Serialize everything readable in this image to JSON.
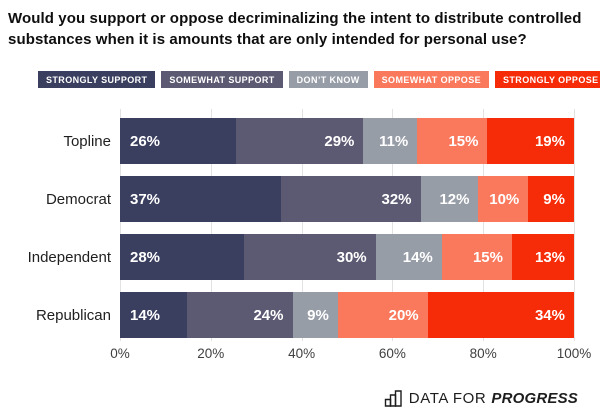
{
  "title": "Would you support or oppose decriminalizing the intent to distribute controlled substances when it is amounts that are only intended for personal use?",
  "legend": [
    {
      "label": "STRONGLY SUPPORT",
      "color": "#3a3f5f"
    },
    {
      "label": "SOMEWHAT SUPPORT",
      "color": "#5c5a73"
    },
    {
      "label": "DON’T KNOW",
      "color": "#979da7"
    },
    {
      "label": "SOMEWHAT OPPOSE",
      "color": "#fa795d"
    },
    {
      "label": "STRONGLY OPPOSE",
      "color": "#f62b07"
    }
  ],
  "chart_data": {
    "type": "bar",
    "stacked": true,
    "orientation": "horizontal",
    "title": "Would you support or oppose decriminalizing the intent to distribute controlled substances when it is amounts that are only intended for personal use?",
    "categories": [
      "Topline",
      "Democrat",
      "Independent",
      "Republican"
    ],
    "series": [
      {
        "name": "Strongly support",
        "color": "#3a3f5f",
        "values": [
          26,
          37,
          28,
          14
        ]
      },
      {
        "name": "Somewhat support",
        "color": "#5c5a73",
        "values": [
          29,
          32,
          30,
          24
        ]
      },
      {
        "name": "Don't know",
        "color": "#979da7",
        "values": [
          11,
          12,
          14,
          9
        ]
      },
      {
        "name": "Somewhat oppose",
        "color": "#fa795d",
        "values": [
          15,
          10,
          15,
          20
        ]
      },
      {
        "name": "Strongly oppose",
        "color": "#f62b07",
        "values": [
          19,
          9,
          13,
          34
        ]
      }
    ],
    "value_suffix": "%",
    "xlim": [
      0,
      100
    ],
    "x_ticks": [
      "0%",
      "20%",
      "40%",
      "60%",
      "80%",
      "100%"
    ],
    "grid": true,
    "legend_position": "top"
  },
  "footer": {
    "brand_regular": "DATA FOR",
    "brand_bold": "PROGRESS"
  },
  "colors": {
    "gridline": "#e2e2e2",
    "axis_text": "#3f3f3f",
    "title_text": "#0e0e0e"
  }
}
